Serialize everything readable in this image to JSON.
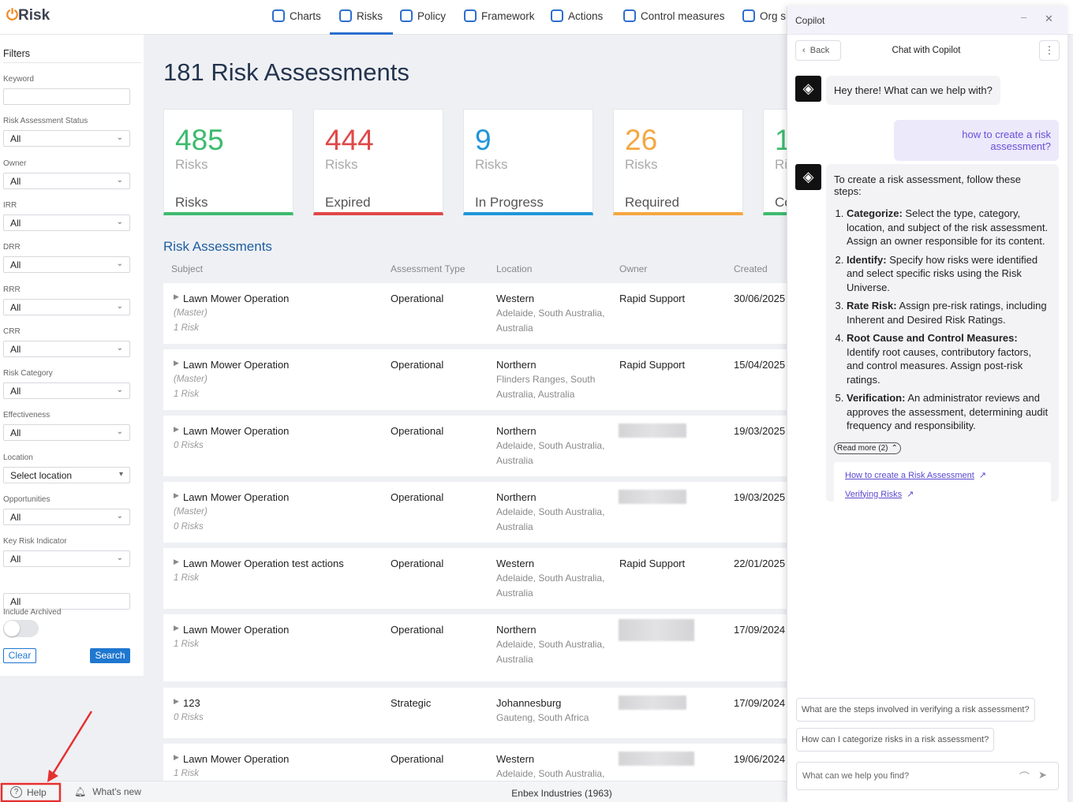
{
  "header": {
    "logo": "Risk",
    "nav": [
      "Charts",
      "Risks",
      "Policy",
      "Framework",
      "Actions",
      "Control measures",
      "Org s"
    ],
    "active": 1
  },
  "filters": {
    "title": "Filters",
    "fields": [
      {
        "label": "Keyword"
      },
      {
        "label": "Risk Assessment Status",
        "value": "All"
      },
      {
        "label": "Owner",
        "value": "All"
      },
      {
        "label": "IRR",
        "value": "All"
      },
      {
        "label": "DRR",
        "value": "All"
      },
      {
        "label": "RRR",
        "value": "All"
      },
      {
        "label": "CRR",
        "value": "All"
      },
      {
        "label": "Risk Category",
        "value": "All"
      },
      {
        "label": "Effectiveness",
        "value": "All"
      },
      {
        "label": "Location",
        "value": "Select location"
      },
      {
        "label": "Opportunities",
        "value": "All"
      },
      {
        "label": "Key Risk Indicator",
        "value": "All"
      },
      {
        "value": "All"
      }
    ],
    "archived_label": "Include Archived",
    "clear": "Clear",
    "search": "Search"
  },
  "page": {
    "title": "181 Risk Assessments",
    "cards": [
      {
        "number": 485,
        "line1": "Risks",
        "line2": "Risks",
        "color": "#3dbb6e"
      },
      {
        "number": 444,
        "line1": "Risks",
        "line2": "Expired",
        "color": "#e04848"
      },
      {
        "number": 9,
        "line1": "Risks",
        "line2": "In Progress",
        "color": "#2196d9"
      },
      {
        "number": 26,
        "line1": "Risks",
        "line2": "Required",
        "color": "#f5a742"
      },
      {
        "number": 1,
        "line1": "Ri",
        "line2": "Co",
        "color": "#3dbb6e"
      }
    ]
  },
  "table": {
    "title": "Risk Assessments",
    "columns": [
      "Subject",
      "Assessment Type",
      "Location",
      "Owner",
      "Created"
    ],
    "rows": [
      {
        "subject": "Lawn Mower Operation",
        "notes": [
          "(Master)",
          "1 Risk"
        ],
        "type": "Operational",
        "location": "Western",
        "place": "Adelaide, South Australia, Australia",
        "owner": "Rapid Support",
        "created": "30/06/2025"
      },
      {
        "subject": "Lawn Mower Operation",
        "notes": [
          "(Master)",
          "1 Risk"
        ],
        "type": "Operational",
        "location": "Northern",
        "place": "Flinders Ranges, South Australia, Australia",
        "owner": "Rapid Support",
        "created": "15/04/2025"
      },
      {
        "subject": "Lawn Mower Operation",
        "notes": [
          "0 Risks"
        ],
        "type": "Operational",
        "location": "Northern",
        "place": "Adelaide, South Australia, Australia",
        "owner": null,
        "created": "19/03/2025"
      },
      {
        "subject": "Lawn Mower Operation",
        "notes": [
          "(Master)",
          "0 Risks"
        ],
        "type": "Operational",
        "location": "Northern",
        "place": "Adelaide, South Australia, Australia",
        "owner": null,
        "created": "19/03/2025"
      },
      {
        "subject": "Lawn Mower Operation test actions",
        "notes": [
          "1 Risk"
        ],
        "type": "Operational",
        "location": "Western",
        "place": "Adelaide, South Australia, Australia",
        "owner": "Rapid Support",
        "created": "22/01/2025"
      },
      {
        "subject": "Lawn Mower Operation",
        "notes": [
          "1 Risk"
        ],
        "type": "Operational",
        "location": "Northern",
        "place": "Adelaide, South Australia, Australia",
        "owner": null,
        "created": "17/09/2024"
      },
      {
        "subject": "123",
        "notes": [
          "0 Risks"
        ],
        "type": "Strategic",
        "location": "Johannesburg",
        "place": "Gauteng, South Africa",
        "owner": null,
        "created": "17/09/2024"
      },
      {
        "subject": "Lawn Mower Operation",
        "notes": [
          "1 Risk"
        ],
        "type": "Operational",
        "location": "Western",
        "place": "Adelaide, South Australia,",
        "owner": null,
        "created": "19/06/2024"
      }
    ]
  },
  "footer": {
    "help": "Help",
    "whats_new": "What's new",
    "company": "Enbex Industries (1963)"
  },
  "copilot": {
    "title": "Copilot",
    "back": "Back",
    "heading": "Chat with Copilot",
    "greeting": "Hey there! What can we help with?",
    "question": "how to create a risk assessment?",
    "answer_intro": "To create a risk assessment, follow these steps:",
    "steps": [
      {
        "title": "Categorize:",
        "text": "Select the type, category, location, and subject of the risk assessment. Assign an owner responsible for its content."
      },
      {
        "title": "Identify:",
        "text": "Specify how risks were identified and select specific risks using the Risk Universe."
      },
      {
        "title": "Rate Risk:",
        "text": "Assign pre-risk ratings, including Inherent and Desired Risk Ratings."
      },
      {
        "title": "Root Cause and Control Measures:",
        "text": "Identify root causes, contributory factors, and control measures. Assign post-risk ratings."
      },
      {
        "title": "Verification:",
        "text": "An administrator reviews and approves the assessment, determining audit frequency and responsibility."
      }
    ],
    "read_more": "Read more (2)",
    "links": [
      "How to create a Risk Assessment",
      "Verifying Risks"
    ],
    "suggestions": [
      "What are the steps involved in verifying a risk assessment?",
      "How can I categorize risks in a risk assessment?"
    ],
    "placeholder": "What can we help you find?"
  }
}
